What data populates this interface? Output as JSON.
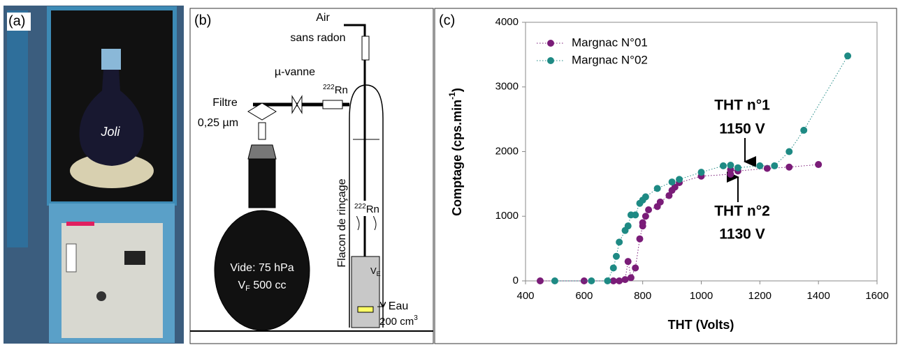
{
  "panel_a": {
    "label": "(a)",
    "flask_text": "Joli"
  },
  "panel_b": {
    "label": "(b)",
    "air": "Air",
    "air_sub": "sans radon",
    "valve": "µ-vanne",
    "rn_top": {
      "sup": "222",
      "text": "Rn"
    },
    "filter": "Filtre",
    "filter_size": "0,25 µm",
    "rinse": "Flacon de rinçage",
    "rn_mid": {
      "sup": "222",
      "text": "Rn"
    },
    "vacuum": "Vide: 75 hPa",
    "volume": {
      "main": "V",
      "sub": "F",
      "rest": " 500 cc"
    },
    "ve": {
      "main": "V",
      "sub": "E"
    },
    "water": "Eau",
    "water_vol": {
      "text": "200 cm",
      "sup": "3"
    }
  },
  "chart_data": {
    "type": "scatter",
    "panel_label": "(c)",
    "xlabel": "THT (Volts)",
    "ylabel": {
      "text": "Comptage (cps.min",
      "sup": "-1",
      "end": ")"
    },
    "xlim": [
      400,
      1600
    ],
    "ylim": [
      0,
      4000
    ],
    "xticks": [
      400,
      600,
      800,
      1000,
      1200,
      1400,
      1600
    ],
    "yticks": [
      0,
      1000,
      2000,
      3000,
      4000
    ],
    "series": [
      {
        "name": "Margnac N°01",
        "color": "#7a1c78",
        "x": [
          450,
          600,
          700,
          720,
          740,
          750,
          760,
          775,
          790,
          800,
          800,
          810,
          820,
          850,
          860,
          890,
          900,
          910,
          925,
          1000,
          1100,
          1100,
          1125,
          1225,
          1300,
          1400
        ],
        "values": [
          0,
          0,
          0,
          0,
          20,
          300,
          50,
          200,
          650,
          850,
          900,
          1000,
          1100,
          1150,
          1220,
          1320,
          1400,
          1450,
          1520,
          1620,
          1650,
          1720,
          1700,
          1740,
          1760,
          1800
        ]
      },
      {
        "name": "Margnac N°02",
        "color": "#1e8a84",
        "x": [
          500,
          625,
          680,
          700,
          710,
          720,
          740,
          750,
          760,
          775,
          790,
          800,
          810,
          850,
          900,
          925,
          1000,
          1075,
          1100,
          1125,
          1200,
          1250,
          1300,
          1350,
          1500
        ],
        "values": [
          0,
          0,
          0,
          200,
          380,
          600,
          780,
          850,
          1020,
          1020,
          1200,
          1250,
          1300,
          1430,
          1530,
          1570,
          1680,
          1780,
          1790,
          1750,
          1780,
          1780,
          2000,
          2330,
          3480
        ]
      }
    ],
    "annotations": [
      "THT n°1",
      "1150 V",
      "THT n°2",
      "1130 V"
    ]
  }
}
